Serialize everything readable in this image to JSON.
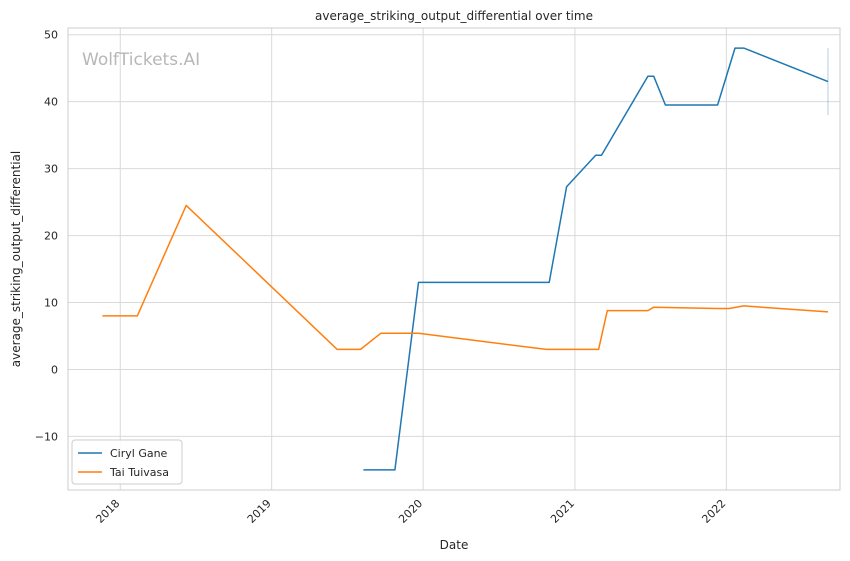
{
  "chart_data": {
    "type": "line",
    "title": "average_striking_output_differential over time",
    "xlabel": "Date",
    "ylabel": "average_striking_output_differential",
    "watermark": "WolfTickets.AI",
    "x_ticks": [
      "2018",
      "2019",
      "2020",
      "2021",
      "2022"
    ],
    "y_ticks": [
      "50",
      "40",
      "30",
      "20",
      "10",
      "0",
      "−10"
    ],
    "ylim": [
      -18,
      51
    ],
    "xlim": [
      "2017-08-28",
      "2022-10-02"
    ],
    "grid": true,
    "legend_position": "lower-left",
    "series": [
      {
        "name": "Ciryl Gane",
        "color": "#1f77b4",
        "points": [
          [
            "2019-08-10",
            -15
          ],
          [
            "2019-10-25",
            -15
          ],
          [
            "2019-12-21",
            13
          ],
          [
            "2020-10-31",
            13
          ],
          [
            "2020-12-12",
            27.3
          ],
          [
            "2021-02-20",
            32
          ],
          [
            "2021-03-06",
            32
          ],
          [
            "2021-06-26",
            43.8
          ],
          [
            "2021-07-10",
            43.8
          ],
          [
            "2021-08-07",
            39.5
          ],
          [
            "2021-12-11",
            39.5
          ],
          [
            "2022-01-22",
            48
          ],
          [
            "2022-02-12",
            48
          ],
          [
            "2022-09-03",
            43
          ]
        ],
        "error_bar": {
          "x": "2022-09-03",
          "low": 38,
          "high": 48
        }
      },
      {
        "name": "Tai Tuivasa",
        "color": "#ff7f0e",
        "points": [
          [
            "2017-11-19",
            8
          ],
          [
            "2018-02-11",
            8
          ],
          [
            "2018-06-09",
            24.5
          ],
          [
            "2019-06-08",
            3
          ],
          [
            "2019-08-03",
            3
          ],
          [
            "2019-09-21",
            5.4
          ],
          [
            "2019-12-21",
            5.4
          ],
          [
            "2020-10-24",
            3
          ],
          [
            "2021-02-27",
            3
          ],
          [
            "2021-03-20",
            8.8
          ],
          [
            "2021-06-26",
            8.8
          ],
          [
            "2021-07-10",
            9.3
          ],
          [
            "2021-12-11",
            9.1
          ],
          [
            "2022-01-08",
            9.1
          ],
          [
            "2022-02-12",
            9.5
          ],
          [
            "2022-09-03",
            8.6
          ]
        ]
      }
    ]
  }
}
